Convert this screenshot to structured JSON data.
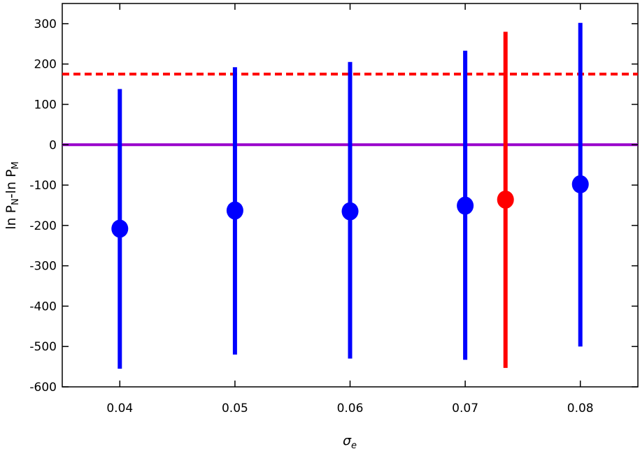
{
  "chart_data": {
    "type": "scatter",
    "xlabel": "σe",
    "ylabel": "ln PN-ln PM",
    "xlim": [
      0.035,
      0.085
    ],
    "ylim": [
      -600,
      350
    ],
    "xticks": [
      "0.04",
      "0.05",
      "0.06",
      "0.07",
      "0.08"
    ],
    "yticks": [
      "300",
      "200",
      "100",
      "0",
      "-100",
      "-200",
      "-300",
      "-400",
      "-500",
      "-600"
    ],
    "grid": false,
    "series": [
      {
        "color": "#0000ff",
        "points": [
          {
            "x": 0.04,
            "y": -208,
            "low": -555,
            "high": 138
          },
          {
            "x": 0.05,
            "y": -163,
            "low": -520,
            "high": 192
          },
          {
            "x": 0.06,
            "y": -165,
            "low": -530,
            "high": 205
          },
          {
            "x": 0.07,
            "y": -151,
            "low": -533,
            "high": 233
          },
          {
            "x": 0.08,
            "y": -98,
            "low": -500,
            "high": 302
          }
        ]
      },
      {
        "color": "#ff0000",
        "points": [
          {
            "x": 0.0735,
            "y": -136,
            "low": -553,
            "high": 280
          }
        ]
      }
    ],
    "reference_lines": [
      {
        "y": 175,
        "style": "dashed",
        "color": "#ff0000"
      },
      {
        "y": 0,
        "style": "solid",
        "color": "#9900cc"
      }
    ]
  }
}
